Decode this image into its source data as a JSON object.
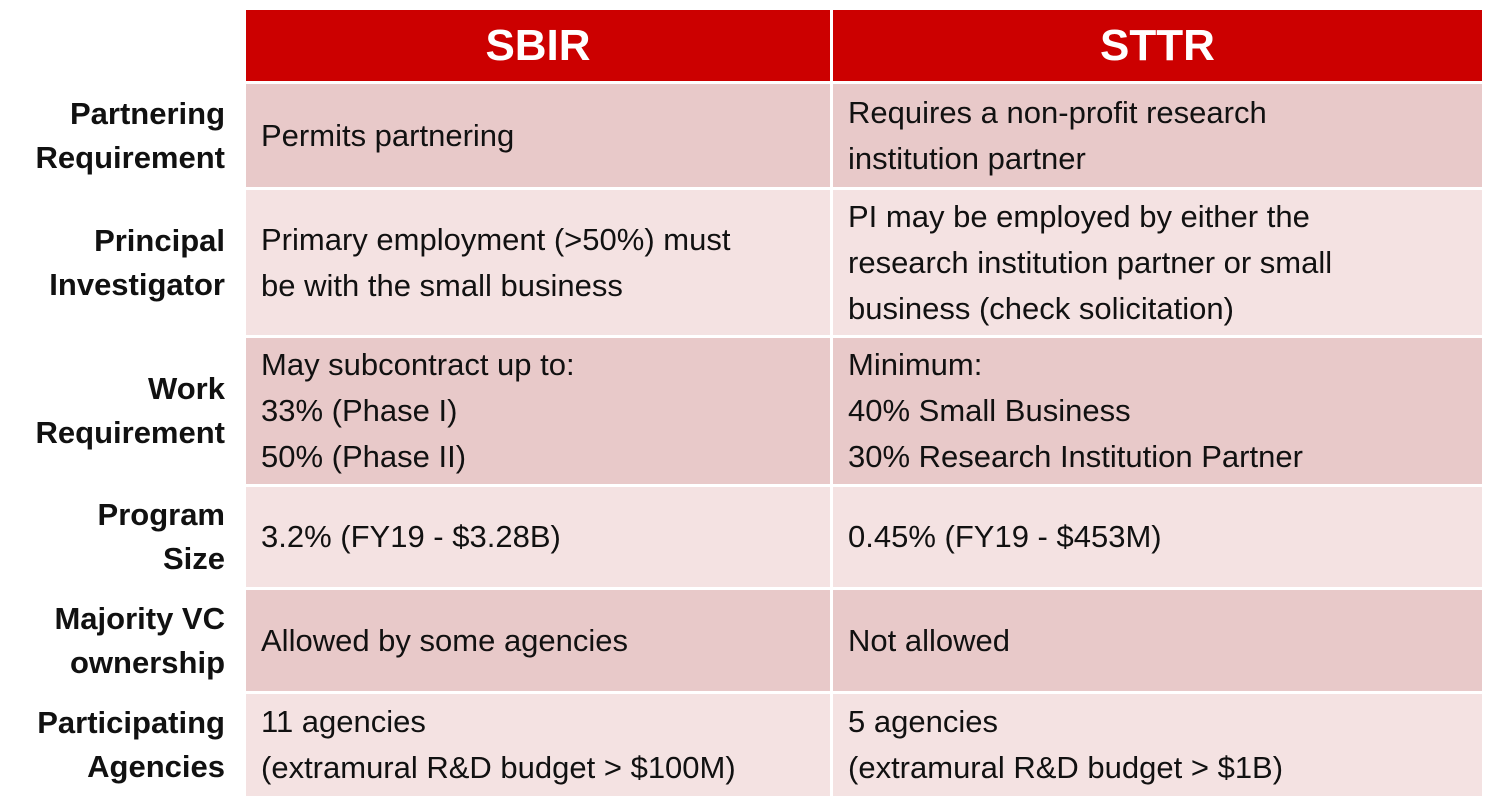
{
  "colors": {
    "header_bg": "#cc0000",
    "header_text": "#ffffff",
    "row_dark": "#e8c9c9",
    "row_light": "#f4e2e2"
  },
  "header": {
    "sbir": "SBIR",
    "sttr": "STTR"
  },
  "rows": [
    {
      "label": "Partnering\nRequirement",
      "sbir": "Permits partnering",
      "sttr": "Requires a non-profit research\ninstitution partner"
    },
    {
      "label": "Principal\nInvestigator",
      "sbir": "Primary employment (>50%) must\nbe with the small business",
      "sttr": "PI may be employed by either the\nresearch institution partner or small\nbusiness (check solicitation)"
    },
    {
      "label": "Work\nRequirement",
      "sbir": "May subcontract up to:\n33% (Phase I)\n50% (Phase II)",
      "sttr": "Minimum:\n40% Small Business\n30% Research Institution Partner"
    },
    {
      "label": "Program\nSize",
      "sbir": "3.2% (FY19 - $3.28B)",
      "sttr": "0.45% (FY19 - $453M)"
    },
    {
      "label": "Majority VC\nownership",
      "sbir": "Allowed by some agencies",
      "sttr": "Not allowed"
    },
    {
      "label": "Participating\nAgencies",
      "sbir": "11 agencies\n(extramural R&D budget > $100M)",
      "sttr": "5 agencies\n(extramural R&D budget > $1B)"
    }
  ]
}
